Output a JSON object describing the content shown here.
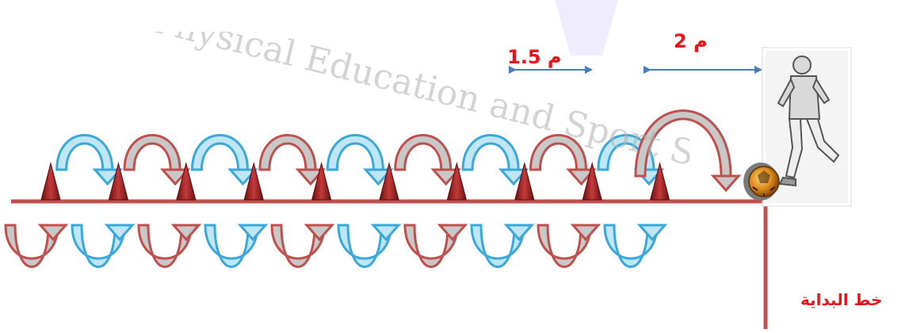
{
  "watermark": {
    "text": "Physical Education and Sport Sciences"
  },
  "labels": {
    "distance_player": "2 م",
    "distance_cones": "1.5 م",
    "start_line": "خط  البداية"
  },
  "drill": {
    "cone_count": 10,
    "colors": {
      "line": "#c0504d",
      "cone": "#a52a2a",
      "arrow_red": "#c0504d",
      "arrow_blue": "#3aa8d8",
      "arrow_fill_gray": "#c8c8c8",
      "arrow_fill_blue": "#bfe6f5",
      "measure": "#4a7ebb",
      "text_red": "#e8141c"
    }
  }
}
